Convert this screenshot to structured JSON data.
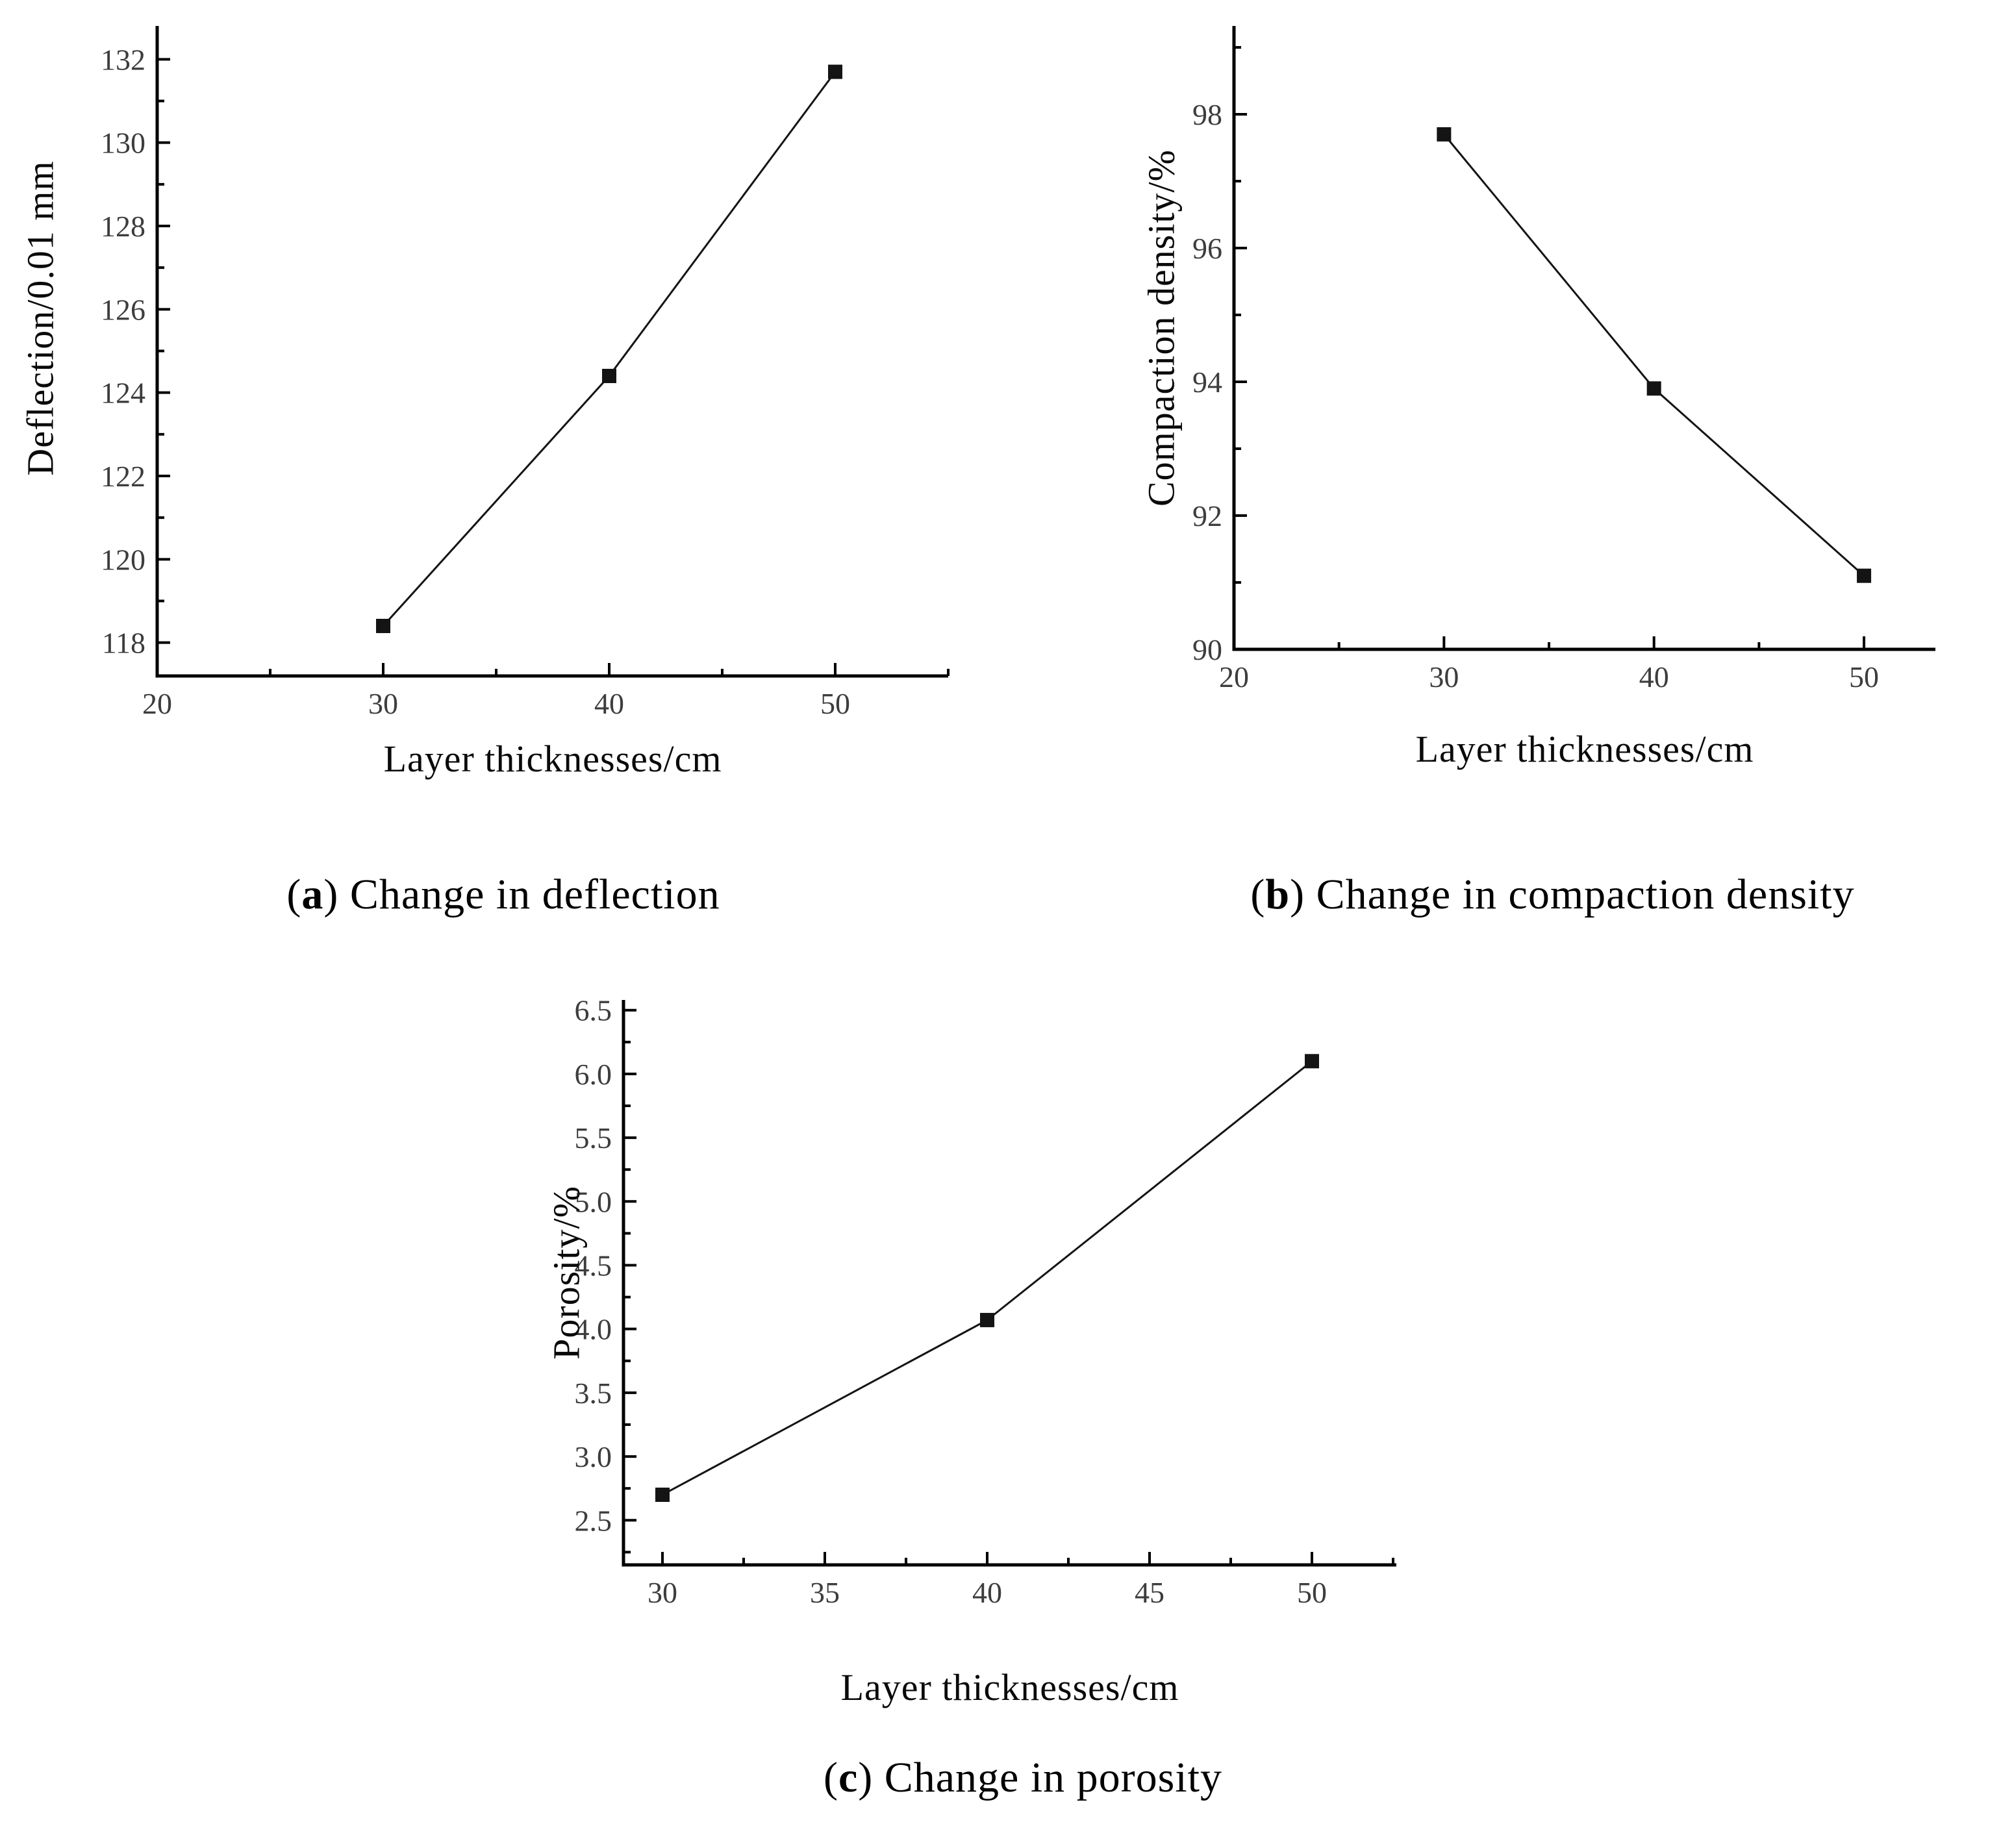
{
  "figure": {
    "background": "#ffffff",
    "axis_color": "#000000",
    "tick_label_color": "#3d3d3d",
    "series_color": "#141414",
    "marker": "square"
  },
  "captions": {
    "a": {
      "prefix": "(",
      "letter": "a",
      "suffix": ") ",
      "text": "Change in deflection"
    },
    "b": {
      "prefix": "(",
      "letter": "b",
      "suffix": ") ",
      "text": "Change in compaction density"
    },
    "c": {
      "prefix": "(",
      "letter": "c",
      "suffix": ") ",
      "text": "Change in porosity"
    }
  },
  "chart_data": [
    {
      "id": "a",
      "type": "line",
      "title": "(a) Change in deflection",
      "xlabel": "Layer thicknesses/cm",
      "ylabel": "Deflection/0.01 mm",
      "x": [
        30,
        40,
        50
      ],
      "y": [
        118.4,
        124.4,
        131.7
      ],
      "xlim": [
        20,
        55
      ],
      "ylim": [
        117.2,
        132.8
      ],
      "xticks": [
        20,
        30,
        40,
        50
      ],
      "xminorticks": [
        25,
        35,
        45,
        55
      ],
      "yticks": [
        118,
        120,
        122,
        124,
        126,
        128,
        130,
        132
      ],
      "yminorticks": [
        119,
        121,
        123,
        125,
        127,
        129,
        131
      ],
      "xtick_format": "int",
      "ytick_format": "int",
      "grid": false,
      "legend": null
    },
    {
      "id": "b",
      "type": "line",
      "title": "(b) Change in compaction density",
      "xlabel": "Layer thicknesses/cm",
      "ylabel": "Compaction density/%",
      "x": [
        30,
        40,
        50
      ],
      "y": [
        97.7,
        93.9,
        91.1
      ],
      "xlim": [
        20,
        53.4
      ],
      "ylim": [
        90,
        99.32
      ],
      "xticks": [
        20,
        30,
        40,
        50
      ],
      "xminorticks": [
        25,
        35,
        45
      ],
      "yticks": [
        90,
        92,
        94,
        96,
        98
      ],
      "yminorticks": [
        91,
        93,
        95,
        97,
        99
      ],
      "xtick_format": "int",
      "ytick_format": "int",
      "grid": false,
      "legend": null
    },
    {
      "id": "c",
      "type": "line",
      "title": "(c) Change in porosity",
      "xlabel": "Layer thicknesses/cm",
      "ylabel": "Porosity/%",
      "x": [
        30,
        40,
        50
      ],
      "y": [
        2.7,
        4.07,
        6.1
      ],
      "xlim": [
        28.8,
        52.6
      ],
      "ylim": [
        2.15,
        6.58
      ],
      "xticks": [
        30,
        35,
        40,
        45,
        50
      ],
      "xminorticks": [
        32.5,
        37.5,
        42.5,
        47.5,
        52.5
      ],
      "yticks": [
        2.5,
        3.0,
        3.5,
        4.0,
        4.5,
        5.0,
        5.5,
        6.0,
        6.5
      ],
      "yminorticks": [
        2.25,
        2.75,
        3.25,
        3.75,
        4.25,
        4.75,
        5.25,
        5.75,
        6.25
      ],
      "xtick_format": "int",
      "ytick_format": "1dp",
      "grid": false,
      "legend": null
    }
  ]
}
